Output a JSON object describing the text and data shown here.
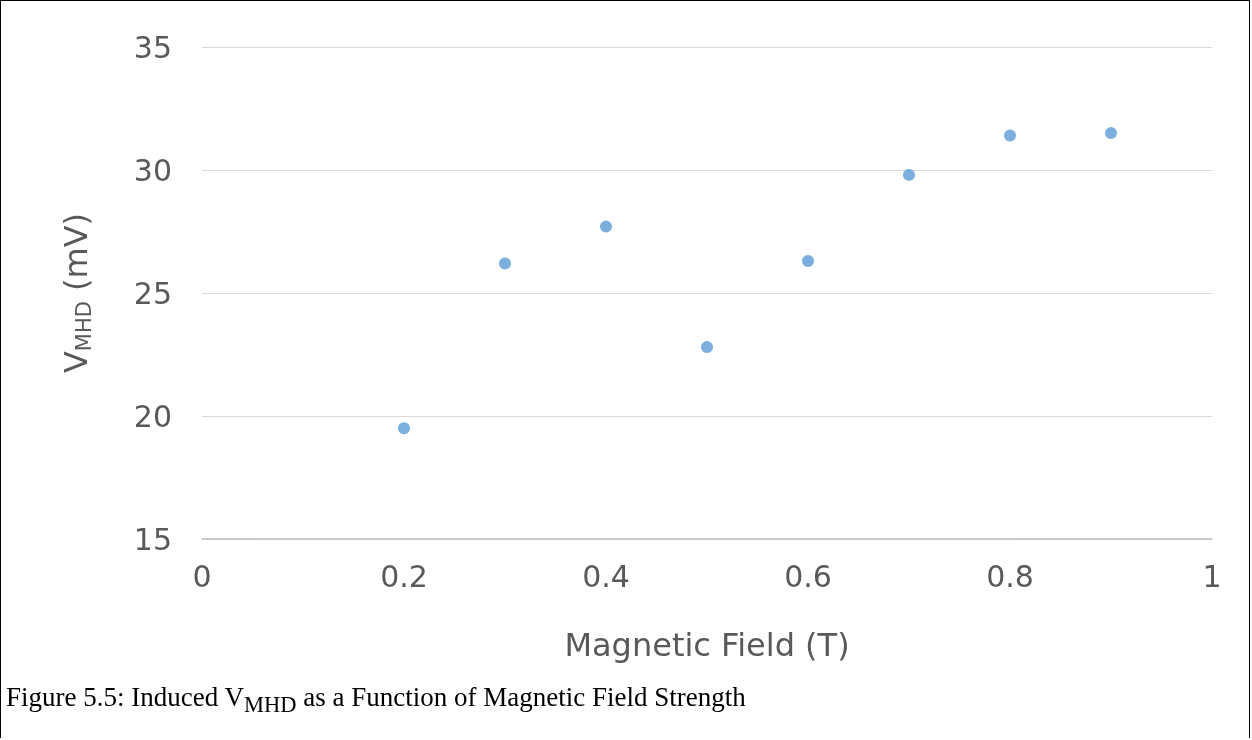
{
  "chart_data": {
    "type": "scatter",
    "xlabel": "Magnetic Field (T)",
    "ylabel": "V$_{MHD}$ (mV)",
    "x": [
      0.2,
      0.3,
      0.4,
      0.5,
      0.6,
      0.7,
      0.8,
      0.9
    ],
    "series": [
      {
        "color": "#5b9bd5",
        "values": [
          19.5,
          26.2,
          27.7,
          22.8,
          26.3,
          29.8,
          31.4,
          31.5
        ]
      }
    ],
    "xlim": [
      0,
      1
    ],
    "xticks": [
      0,
      0.2,
      0.4,
      0.6,
      0.8,
      1
    ],
    "ylim": [
      15,
      35
    ],
    "yticks": [
      15,
      20,
      25,
      30,
      35
    ],
    "grid": "y",
    "marker": "circle",
    "annotations": [
      "Figure 5.5: Induced V$_{MHD}$ as a Function of Magnetic Field Strength"
    ]
  }
}
